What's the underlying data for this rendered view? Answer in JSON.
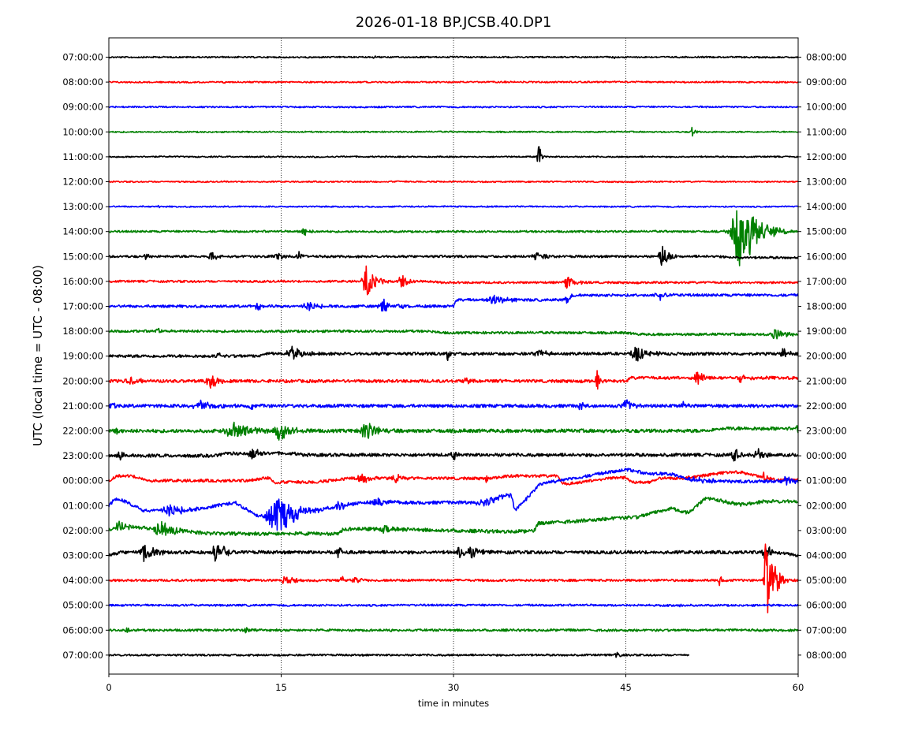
{
  "chart_data": {
    "type": "line",
    "title": "2026-01-18 BP.JCSB.40.DP1",
    "xlabel": "time in minutes",
    "ylabel": "UTC (local time = UTC - 08:00)",
    "xlim": [
      0,
      60
    ],
    "xticks": [
      0,
      15,
      30,
      45,
      60
    ],
    "grid": "vertical dotted lines at 15, 30, 45",
    "colors": [
      "#000000",
      "#ff0000",
      "#0000ff",
      "#008000"
    ],
    "left_labels": [
      "07:00:00",
      "08:00:00",
      "09:00:00",
      "10:00:00",
      "11:00:00",
      "12:00:00",
      "13:00:00",
      "14:00:00",
      "15:00:00",
      "16:00:00",
      "17:00:00",
      "18:00:00",
      "19:00:00",
      "20:00:00",
      "21:00:00",
      "22:00:00",
      "23:00:00",
      "00:00:00",
      "01:00:00",
      "02:00:00",
      "03:00:00",
      "04:00:00",
      "05:00:00",
      "06:00:00",
      "07:00:00"
    ],
    "right_labels": [
      "08:00:00",
      "09:00:00",
      "10:00:00",
      "11:00:00",
      "12:00:00",
      "13:00:00",
      "14:00:00",
      "15:00:00",
      "16:00:00",
      "17:00:00",
      "18:00:00",
      "19:00:00",
      "20:00:00",
      "21:00:00",
      "22:00:00",
      "23:00:00",
      "00:00:00",
      "01:00:00",
      "02:00:00",
      "03:00:00",
      "04:00:00",
      "05:00:00",
      "06:00:00",
      "07:00:00",
      "08:00:00"
    ],
    "traces": [
      {
        "noise": 0.9,
        "end": 60,
        "events": [
          [
            23,
            0.5,
            1.2
          ],
          [
            44,
            0.3,
            1.5
          ]
        ],
        "steps": []
      },
      {
        "noise": 0.9,
        "end": 60,
        "events": [
          [
            10,
            0.6,
            1.0
          ],
          [
            14.5,
            0.2,
            1.5
          ]
        ],
        "steps": []
      },
      {
        "noise": 0.9,
        "end": 60,
        "events": [
          [
            52,
            0.5,
            1.0
          ]
        ],
        "steps": []
      },
      {
        "noise": 0.8,
        "end": 60,
        "events": [
          [
            50.8,
            0.2,
            7
          ]
        ],
        "steps": []
      },
      {
        "noise": 0.8,
        "end": 60,
        "events": [
          [
            37.4,
            0.2,
            22
          ]
        ],
        "steps": []
      },
      {
        "noise": 0.8,
        "end": 60,
        "events": [
          [
            2.2,
            0.1,
            2
          ]
        ],
        "steps": []
      },
      {
        "noise": 0.8,
        "end": 60,
        "events": [
          [
            4.3,
            0.2,
            1.5
          ]
        ],
        "steps": []
      },
      {
        "noise": 1.2,
        "end": 60,
        "events": [
          [
            17,
            0.5,
            6
          ],
          [
            55,
            1.5,
            45
          ],
          [
            55.8,
            1.5,
            10
          ]
        ],
        "steps": []
      },
      {
        "noise": 1.4,
        "end": 60,
        "events": [
          [
            3.2,
            0.4,
            3
          ],
          [
            9,
            0.8,
            5
          ],
          [
            14.8,
            1.0,
            4
          ],
          [
            16.5,
            0.2,
            14
          ],
          [
            37.3,
            0.7,
            8
          ],
          [
            48.2,
            0.6,
            14
          ]
        ],
        "steps": [
          [
            53,
            2,
            1.5
          ]
        ]
      },
      {
        "noise": 1.3,
        "end": 60,
        "events": [
          [
            22.5,
            0.7,
            22
          ],
          [
            25.5,
            0.6,
            12
          ],
          [
            40,
            0.7,
            8
          ]
        ],
        "steps": [
          [
            28,
            1,
            1.5
          ]
        ]
      },
      {
        "noise": 1.6,
        "end": 60,
        "events": [
          [
            13,
            0.6,
            4
          ],
          [
            17.5,
            1.2,
            4
          ],
          [
            24,
            1.0,
            8
          ],
          [
            33.5,
            1.2,
            6
          ],
          [
            39.8,
            0.2,
            7
          ],
          [
            48,
            0.8,
            5
          ]
        ],
        "steps": [
          [
            30,
            0.3,
            -8
          ],
          [
            40,
            0.3,
            -6
          ]
        ]
      },
      {
        "noise": 1.5,
        "end": 60,
        "events": [
          [
            4.2,
            0.3,
            4
          ],
          [
            58,
            1.0,
            6
          ]
        ],
        "steps": [
          [
            28,
            1,
            2
          ],
          [
            45,
            1,
            2
          ]
        ]
      },
      {
        "noise": 1.8,
        "end": 60,
        "events": [
          [
            9.5,
            0.2,
            10
          ],
          [
            16,
            1.0,
            8
          ],
          [
            29.5,
            0.2,
            10
          ],
          [
            37.5,
            0.8,
            5
          ],
          [
            46,
            1.0,
            10
          ],
          [
            58.8,
            0.5,
            8
          ]
        ],
        "steps": [
          [
            13,
            0.5,
            -3
          ]
        ]
      },
      {
        "noise": 1.9,
        "end": 60,
        "events": [
          [
            2,
            0.8,
            5
          ],
          [
            8.8,
            0.7,
            12
          ],
          [
            31,
            0.5,
            4
          ],
          [
            42.5,
            0.2,
            14
          ],
          [
            51.3,
            0.6,
            9
          ],
          [
            55,
            0.8,
            5
          ]
        ],
        "steps": [
          [
            45,
            0.5,
            -4
          ]
        ]
      },
      {
        "noise": 2.0,
        "end": 60,
        "events": [
          [
            0.2,
            0.4,
            6
          ],
          [
            8,
            1.2,
            8
          ],
          [
            12.5,
            0.4,
            4
          ],
          [
            41,
            0.6,
            5
          ],
          [
            45,
            0.7,
            8
          ],
          [
            50,
            0.3,
            6
          ]
        ],
        "steps": []
      },
      {
        "noise": 2.2,
        "end": 60,
        "events": [
          [
            0.5,
            0.4,
            6
          ],
          [
            11,
            1.5,
            12
          ],
          [
            15,
            1.0,
            14
          ],
          [
            22.5,
            1.0,
            12
          ],
          [
            60,
            0.2,
            6
          ]
        ],
        "steps": [
          [
            52,
            1,
            -3
          ]
        ]
      },
      {
        "noise": 2.0,
        "end": 60,
        "events": [
          [
            1,
            0.6,
            6
          ],
          [
            12.5,
            0.6,
            9
          ],
          [
            30,
            0.3,
            8
          ],
          [
            54.5,
            0.6,
            8
          ],
          [
            56.5,
            0.6,
            8
          ]
        ],
        "steps": [
          [
            9.5,
            0.5,
            -3
          ],
          [
            16,
            1,
            2
          ]
        ]
      },
      {
        "noise": 1.8,
        "end": 60,
        "events": [
          [
            22,
            0.7,
            8
          ],
          [
            25,
            0.5,
            6
          ],
          [
            32.8,
            0.2,
            8
          ],
          [
            57,
            0.2,
            14
          ]
        ],
        "steps": [
          [
            0,
            0.8,
            -6
          ],
          [
            2,
            1.5,
            6
          ],
          [
            12,
            3,
            -6
          ],
          [
            14,
            0.5,
            8
          ],
          [
            18,
            3,
            -5
          ],
          [
            33,
            2,
            -3
          ],
          [
            39,
            0.5,
            10
          ],
          [
            40,
            4,
            -8
          ],
          [
            45,
            0.5,
            6
          ],
          [
            47,
            1,
            -5
          ],
          [
            50,
            4,
            -8
          ],
          [
            55,
            3,
            10
          ]
        ]
      },
      {
        "noise": 2.0,
        "end": 60,
        "events": [
          [
            5.5,
            1.5,
            6
          ],
          [
            14.8,
            1.8,
            24
          ],
          [
            20,
            0.5,
            8
          ],
          [
            23.5,
            0.8,
            6
          ],
          [
            33,
            2,
            5
          ],
          [
            51,
            2,
            3
          ],
          [
            59,
            0.6,
            6
          ]
        ],
        "steps": [
          [
            0,
            0.5,
            -8
          ],
          [
            1,
            2,
            14
          ],
          [
            7,
            4,
            -10
          ],
          [
            11,
            2,
            18
          ],
          [
            15,
            7,
            -18
          ],
          [
            33,
            2,
            -10
          ],
          [
            35,
            0.3,
            18
          ],
          [
            35.5,
            2,
            -30
          ],
          [
            37,
            8,
            -20
          ],
          [
            45,
            2,
            6
          ],
          [
            49,
            1.5,
            7
          ],
          [
            51,
            2,
            2
          ]
        ]
      },
      {
        "noise": 2.2,
        "end": 60,
        "events": [
          [
            1,
            0.6,
            10
          ],
          [
            4.5,
            1.2,
            10
          ],
          [
            24,
            0.6,
            6
          ]
        ],
        "steps": [
          [
            0,
            1,
            -6
          ],
          [
            1,
            8,
            10
          ],
          [
            20,
            0.4,
            -6
          ],
          [
            23,
            10,
            3
          ],
          [
            37,
            0.4,
            -10
          ],
          [
            37.5,
            8,
            -8
          ],
          [
            46,
            2,
            -8
          ],
          [
            48,
            2,
            -6
          ],
          [
            49,
            1,
            8
          ],
          [
            50.5,
            1.5,
            -18
          ],
          [
            52,
            3,
            8
          ],
          [
            55,
            2,
            -4
          ]
        ]
      },
      {
        "noise": 2.0,
        "end": 60,
        "events": [
          [
            3.2,
            0.8,
            12
          ],
          [
            9.3,
            0.7,
            12
          ],
          [
            10,
            0.3,
            10
          ],
          [
            20,
            0.4,
            8
          ],
          [
            30.5,
            0.4,
            10
          ],
          [
            31.5,
            0.8,
            8
          ],
          [
            57.2,
            0.5,
            10
          ]
        ],
        "steps": [
          [
            0,
            1,
            -4
          ],
          [
            58,
            2,
            4
          ]
        ]
      },
      {
        "noise": 1.4,
        "end": 60,
        "events": [
          [
            15.5,
            0.8,
            6
          ],
          [
            20.3,
            0.2,
            8
          ],
          [
            21.5,
            0.8,
            4
          ],
          [
            53.2,
            0.2,
            8
          ],
          [
            57.2,
            0.3,
            65
          ],
          [
            57.6,
            0.6,
            35
          ],
          [
            58.2,
            0.6,
            10
          ]
        ],
        "steps": []
      },
      {
        "noise": 1.2,
        "end": 60,
        "events": [
          [
            49.7,
            0.1,
            5
          ]
        ],
        "steps": []
      },
      {
        "noise": 1.4,
        "end": 60,
        "events": [
          [
            1.6,
            0.3,
            6
          ],
          [
            11.9,
            0.3,
            5
          ],
          [
            24.6,
            0.2,
            3
          ]
        ],
        "steps": []
      },
      {
        "noise": 1.1,
        "end": 50.5,
        "events": [
          [
            44.2,
            0.4,
            4
          ]
        ],
        "steps": []
      }
    ]
  }
}
